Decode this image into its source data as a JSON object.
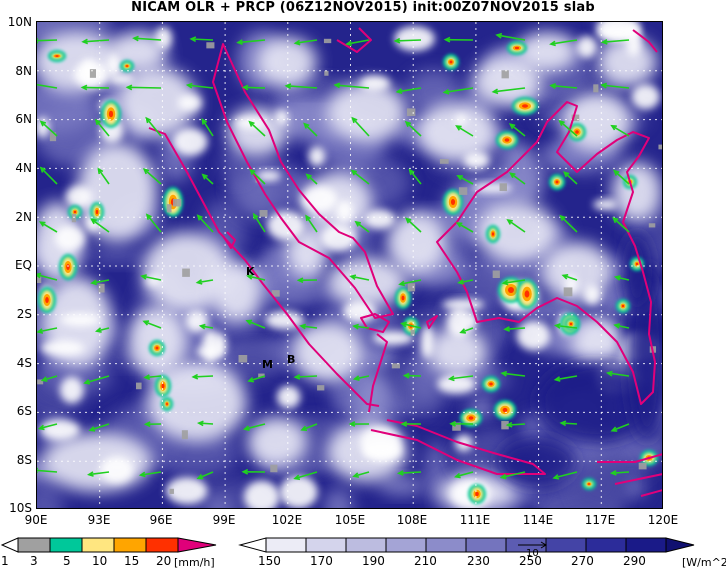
{
  "title": "NICAM OLR + PRCP (06Z12NOV2015) init:00Z07NOV2015 slab",
  "map": {
    "lat_labels": [
      "10N",
      "8N",
      "6N",
      "4N",
      "2N",
      "EQ",
      "2S",
      "4S",
      "6S",
      "8S",
      "10S"
    ],
    "lon_labels": [
      "90E",
      "93E",
      "96E",
      "99E",
      "102E",
      "105E",
      "108E",
      "111E",
      "114E",
      "117E",
      "120E"
    ],
    "sites": [
      {
        "name": "K",
        "lon": 101.2,
        "lat": -0.2
      },
      {
        "name": "M",
        "lon": 100.4,
        "lat": -4.1
      },
      {
        "name": "B",
        "lon": 101.7,
        "lat": -3.8
      }
    ]
  },
  "prcp_colorbar": {
    "labels": [
      "1",
      "3",
      "5",
      "10",
      "15",
      "20"
    ],
    "unit": "[mm/h]",
    "colors": [
      "#ffffff",
      "#a0a0a0",
      "#00c89a",
      "#ffe680",
      "#ffa500",
      "#ff3000",
      "#e0007a"
    ]
  },
  "olr_colorbar": {
    "labels": [
      "150",
      "170",
      "190",
      "210",
      "230",
      "250",
      "270",
      "290"
    ],
    "unit": "[W/m^2]",
    "reference_vector_label": "10",
    "colors": [
      "#ffffff",
      "#ececf6",
      "#d4d4ec",
      "#bcbce0",
      "#a4a4d6",
      "#8c8cca",
      "#7474be",
      "#5c5cb2",
      "#4444a6",
      "#2c2c9a",
      "#1a1a88",
      "#101070"
    ]
  },
  "legend_colors": {
    "coastline": "#e0007a",
    "wind_vector": "#20d020",
    "grid": "#ffffff"
  }
}
